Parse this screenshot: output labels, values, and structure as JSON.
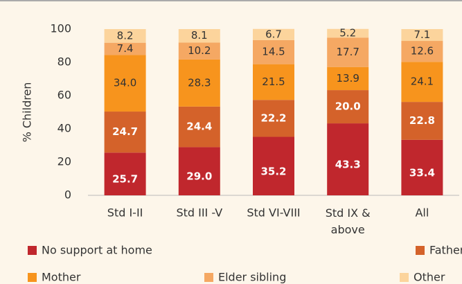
{
  "chart_data": {
    "type": "stacked_bar",
    "categories": [
      "Std I-II",
      "Std III -V",
      "Std VI-VIII",
      "Std IX & above",
      "All"
    ],
    "y_label": "% Children",
    "ylim": [
      0,
      100
    ],
    "yticks": [
      0,
      20,
      40,
      60,
      80,
      100
    ],
    "series": [
      {
        "name": "No support at home",
        "color": "#c0272d",
        "values": [
          25.7,
          29.0,
          35.2,
          43.3,
          33.4
        ],
        "value_labels": [
          "25.7",
          "29.0",
          "35.2",
          "43.3",
          "33.4"
        ]
      },
      {
        "name": "Father",
        "color": "#d4622a",
        "values": [
          24.7,
          24.4,
          22.2,
          20.0,
          22.8
        ],
        "value_labels": [
          "24.7",
          "24.4",
          "22.2",
          "20.0",
          "22.8"
        ]
      },
      {
        "name": "Mother",
        "color": "#f7941d",
        "values": [
          34.0,
          28.3,
          21.5,
          13.9,
          24.1
        ],
        "value_labels": [
          "34.0",
          "28.3",
          "21.5",
          "13.9",
          "24.1"
        ]
      },
      {
        "name": "Elder sibling",
        "color": "#f5a863",
        "values": [
          7.4,
          10.2,
          14.5,
          17.7,
          12.6
        ],
        "value_labels": [
          "7.4",
          "10.2",
          "14.5",
          "17.7",
          "12.6"
        ]
      },
      {
        "name": "Other",
        "color": "#fcd49c",
        "values": [
          8.2,
          8.1,
          6.7,
          5.2,
          7.1
        ],
        "value_labels": [
          "8.2",
          "8.1",
          "6.7",
          "5.2",
          "7.1"
        ]
      }
    ]
  }
}
